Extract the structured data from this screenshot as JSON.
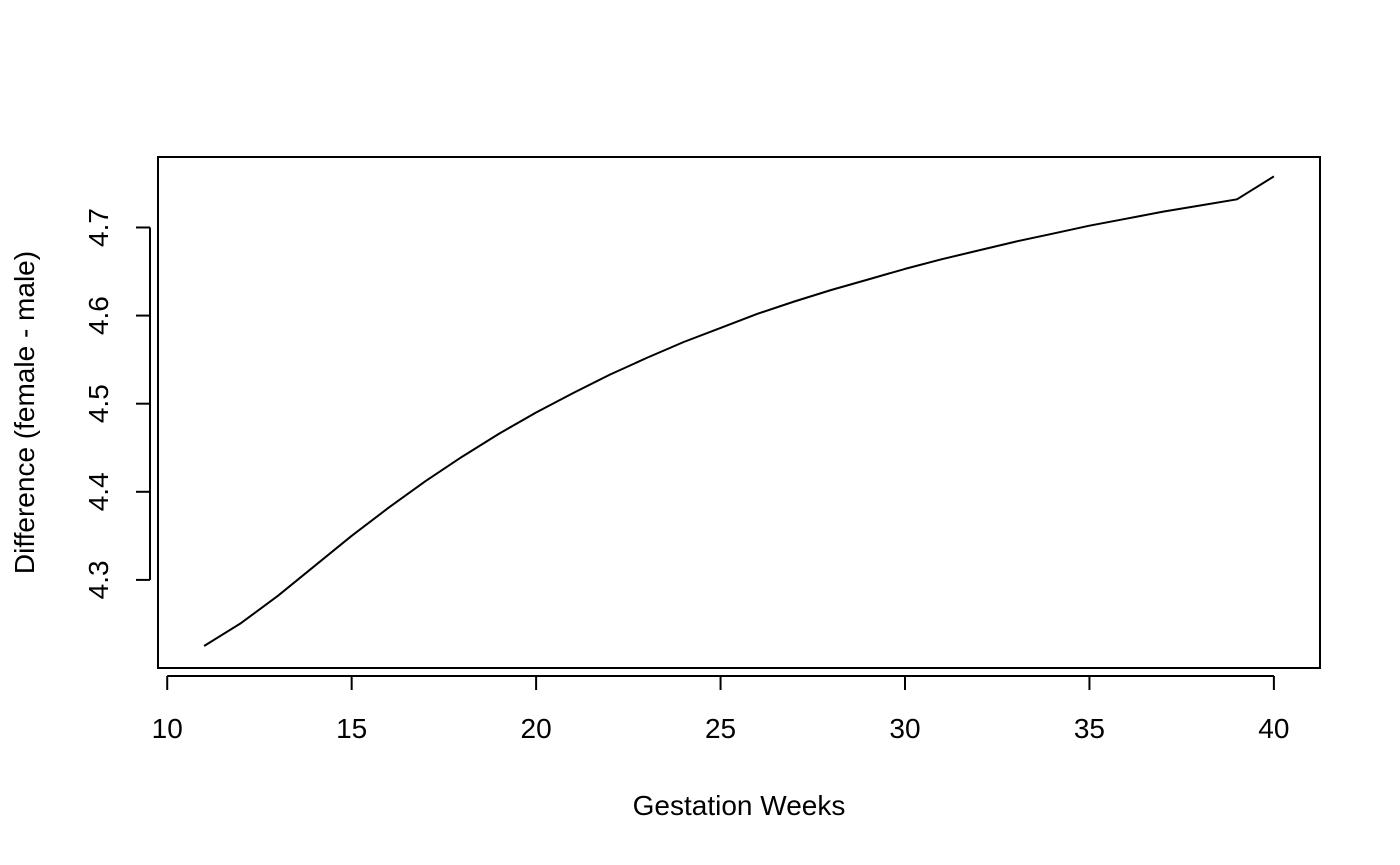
{
  "chart_data": {
    "type": "line",
    "title": "",
    "xlabel": "Gestation Weeks",
    "ylabel": "Difference (female - male)",
    "xlim": [
      9.75,
      41.25
    ],
    "ylim": [
      4.2,
      4.78
    ],
    "x_ticks": [
      10,
      15,
      20,
      25,
      30,
      35,
      40
    ],
    "x_tick_labels": [
      "10",
      "15",
      "20",
      "25",
      "30",
      "35",
      "40"
    ],
    "y_ticks": [
      4.3,
      4.4,
      4.5,
      4.6,
      4.7
    ],
    "y_tick_labels": [
      "4.3",
      "4.4",
      "4.5",
      "4.6",
      "4.7"
    ],
    "grid": false,
    "legend": "none",
    "line_color": "#000000",
    "series": [
      {
        "x": [
          11,
          12,
          13,
          14,
          15,
          16,
          17,
          18,
          19,
          20,
          21,
          22,
          23,
          24,
          25,
          26,
          27,
          28,
          29,
          30,
          31,
          32,
          33,
          34,
          35,
          36,
          37,
          38,
          39,
          40
        ],
        "values": [
          4.225,
          4.251,
          4.282,
          4.316,
          4.35,
          4.382,
          4.412,
          4.44,
          4.466,
          4.49,
          4.512,
          4.533,
          4.552,
          4.57,
          4.586,
          4.602,
          4.616,
          4.629,
          4.641,
          4.653,
          4.664,
          4.674,
          4.684,
          4.693,
          4.702,
          4.71,
          4.718,
          4.725,
          4.732,
          4.758
        ]
      }
    ]
  }
}
